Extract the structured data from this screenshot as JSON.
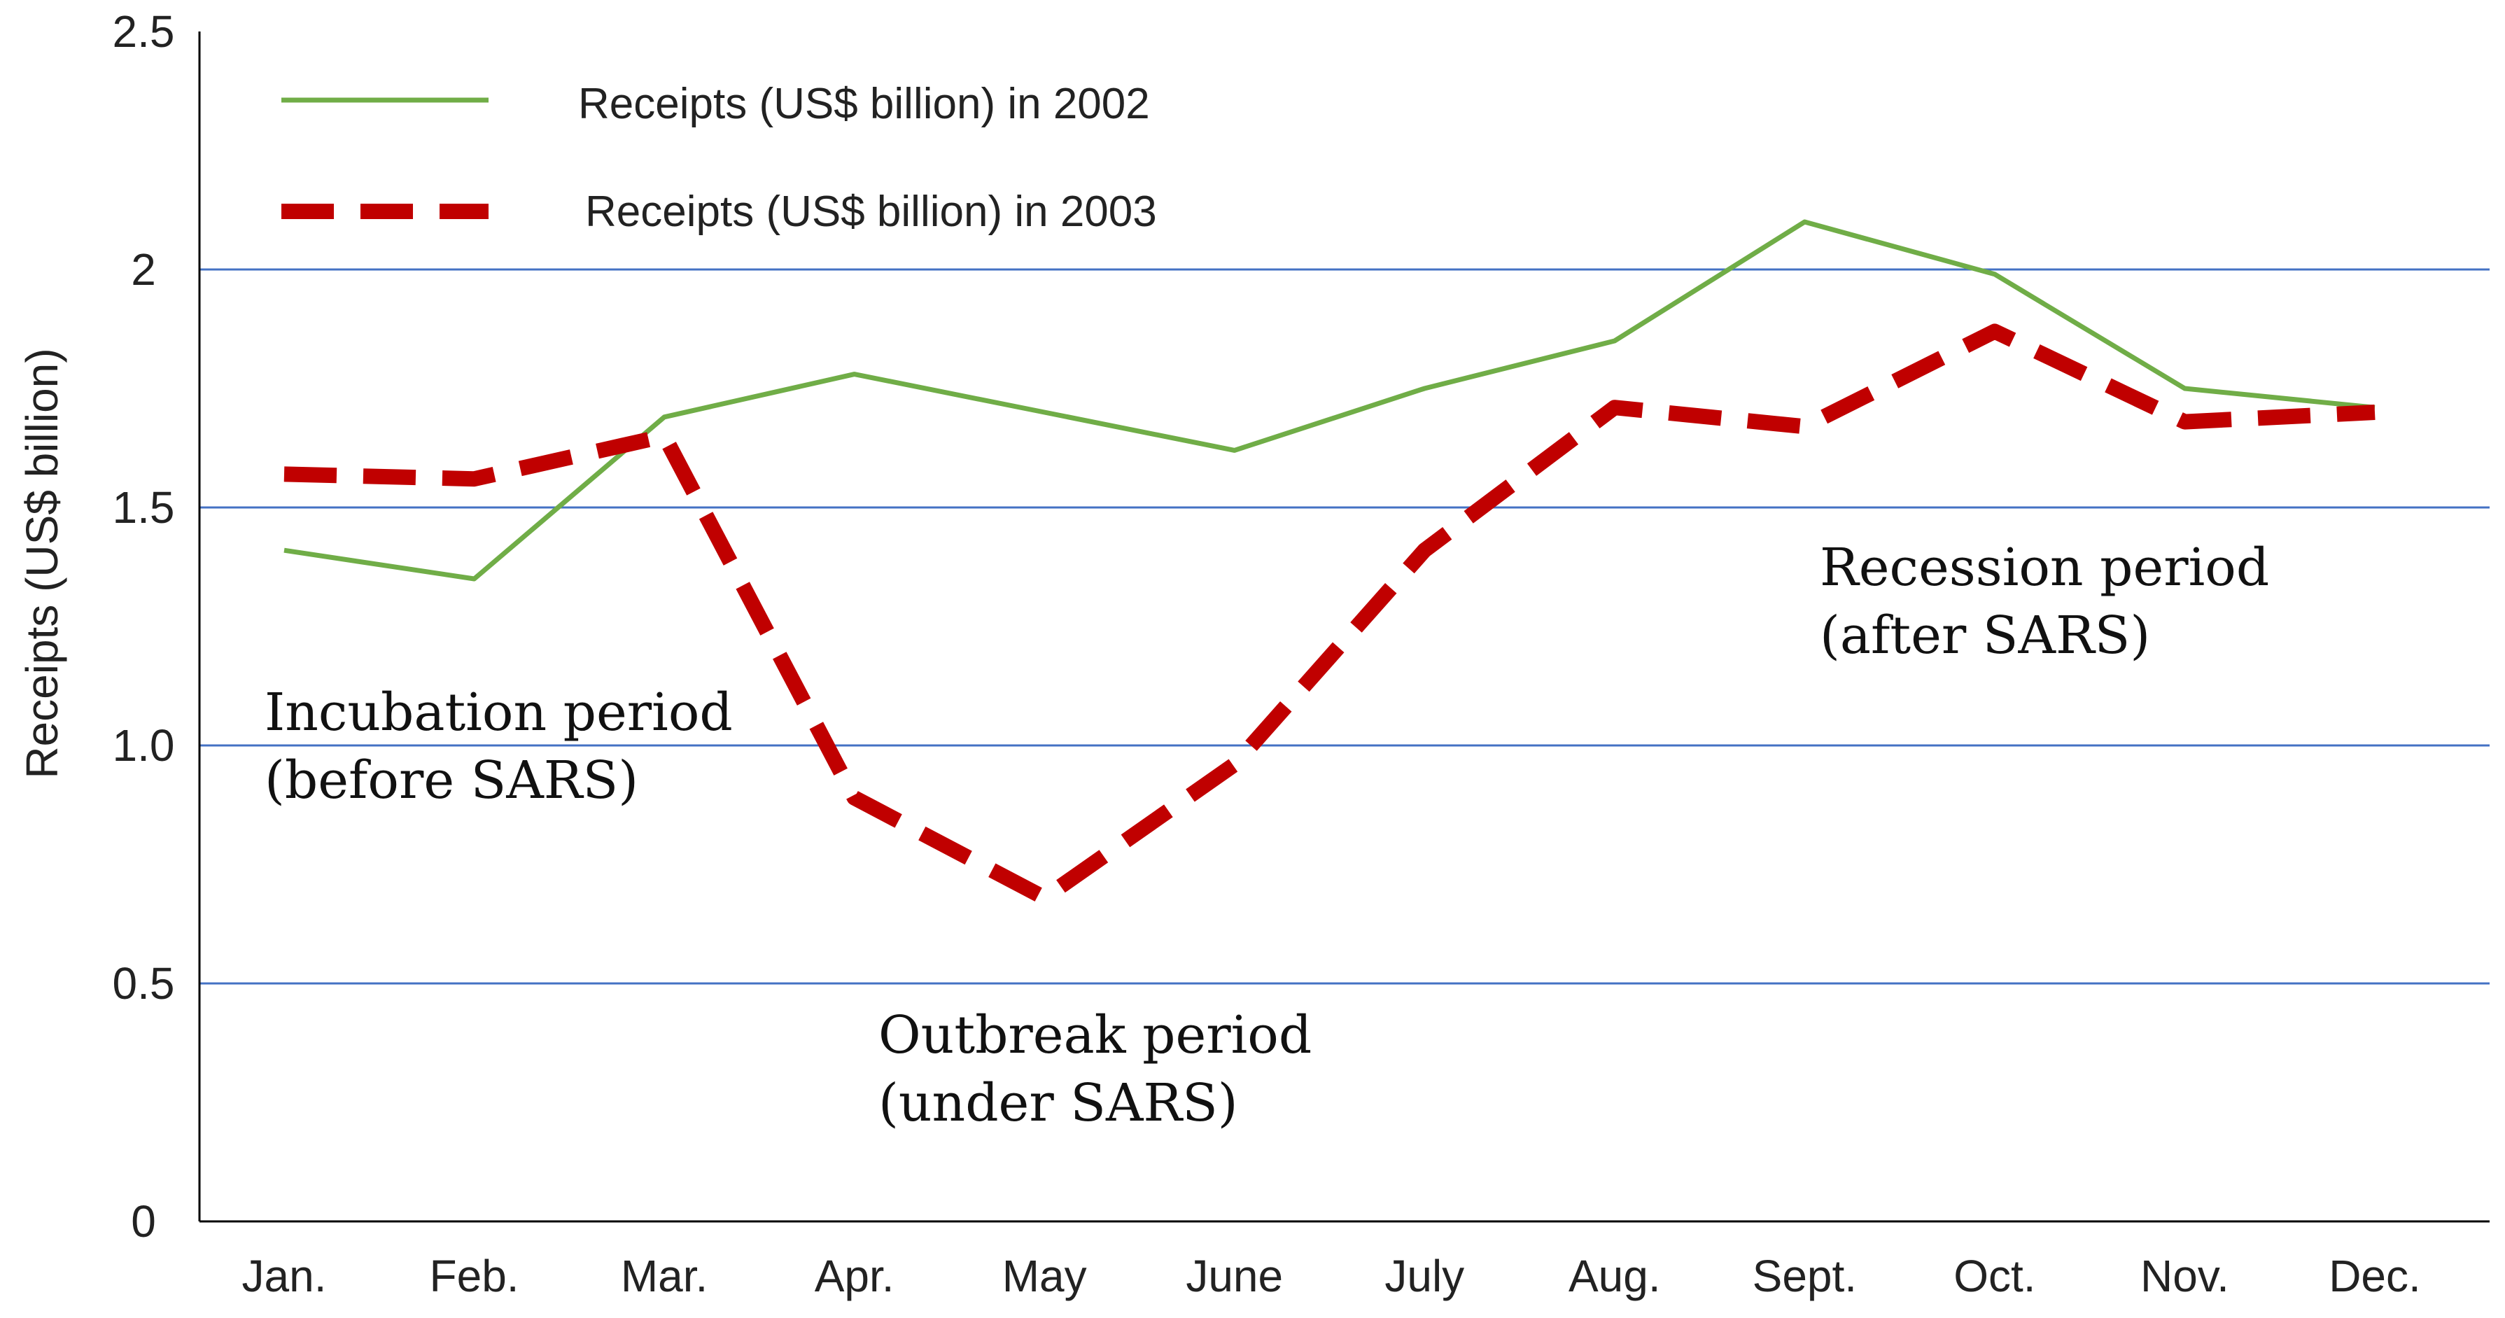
{
  "chart_data": {
    "type": "line",
    "title": "",
    "xlabel": "",
    "ylabel": "Receipts (US$ billion)",
    "ylim": [
      0,
      2.5
    ],
    "yticks": [
      "0",
      "0.5",
      "1.0",
      "1.5",
      "2",
      "2.5"
    ],
    "grid": true,
    "legend_position": "top-left",
    "categories": [
      "Jan.",
      "Feb.",
      "Mar.",
      "Apr.",
      "May",
      "June",
      "July",
      "Aug.",
      "Sept.",
      "Oct.",
      "Nov.",
      "Dec."
    ],
    "series": [
      {
        "name": "Receipts (US$ billion) in 2002",
        "color": "#70ad47",
        "style": "solid",
        "values": [
          1.41,
          1.35,
          1.69,
          1.78,
          1.7,
          1.62,
          1.75,
          1.85,
          2.1,
          1.99,
          1.75,
          1.71
        ]
      },
      {
        "name": "Receipts (US$ billion) in 2003",
        "color": "#c00000",
        "style": "dashed",
        "values": [
          1.57,
          1.56,
          1.65,
          0.89,
          0.68,
          0.96,
          1.41,
          1.71,
          1.67,
          1.87,
          1.68,
          1.7
        ]
      }
    ],
    "annotations": [
      {
        "id": "incubation",
        "lines": [
          "Incubation period",
          "(before SARS)"
        ]
      },
      {
        "id": "outbreak",
        "lines": [
          "Outbreak period",
          "(under SARS)"
        ]
      },
      {
        "id": "recession",
        "lines": [
          "Recession period",
          "(after SARS)"
        ]
      }
    ]
  }
}
